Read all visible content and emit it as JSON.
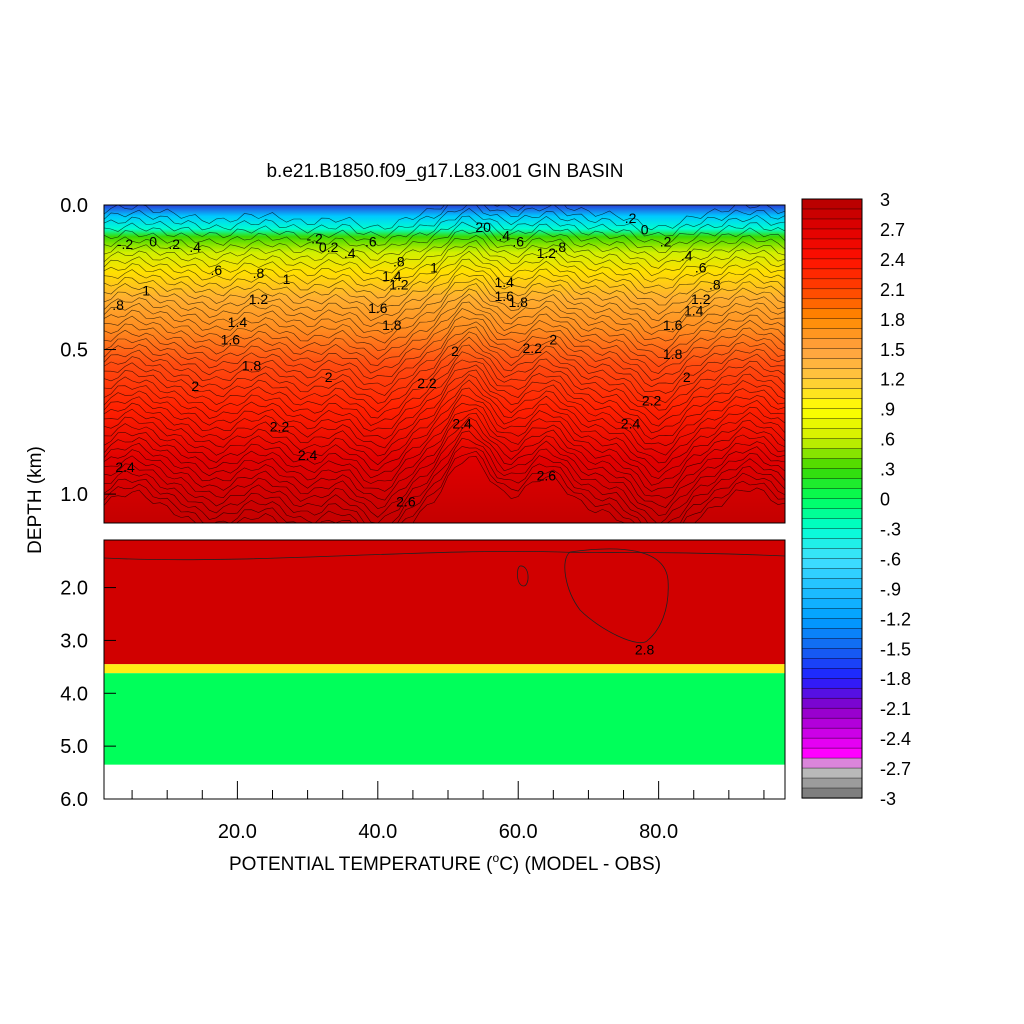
{
  "chart_data": {
    "type": "heatmap",
    "title": "b.e21.B1850.f09_g17.L83.001 GIN BASIN",
    "xlabel_parts": [
      "POTENTIAL TEMPERATURE (",
      "o",
      "C) (MODEL - OBS)"
    ],
    "ylabel": "DEPTH (km)",
    "x_range": [
      1,
      98
    ],
    "x_ticks": [
      {
        "value": 20,
        "label": "20.0"
      },
      {
        "value": 40,
        "label": "40.0"
      },
      {
        "value": 60,
        "label": "60.0"
      },
      {
        "value": 80,
        "label": "80.0"
      }
    ],
    "upper_panel": {
      "y_range": [
        0,
        1.1
      ],
      "y_ticks": [
        {
          "value": 0,
          "label": "0.0"
        },
        {
          "value": 0.5,
          "label": "0.5"
        },
        {
          "value": 1.0,
          "label": "1.0"
        }
      ]
    },
    "lower_panel": {
      "y_range": [
        1.1,
        6.0
      ],
      "y_ticks": [
        {
          "value": 2,
          "label": "2.0"
        },
        {
          "value": 3,
          "label": "3.0"
        },
        {
          "value": 4,
          "label": "4.0"
        },
        {
          "value": 5,
          "label": "5.0"
        },
        {
          "value": 6,
          "label": "6.0"
        }
      ],
      "bands": [
        {
          "from": 1.1,
          "to": 3.45,
          "value": 2.8
        },
        {
          "from": 3.45,
          "to": 3.62,
          "value": 1.0
        },
        {
          "from": 3.62,
          "to": 5.35,
          "value": 0.0
        }
      ]
    },
    "colorbar": {
      "min": -3,
      "max": 3,
      "labels": [
        "3",
        "2.7",
        "2.4",
        "2.1",
        "1.8",
        "1.5",
        "1.2",
        ".9",
        ".6",
        ".3",
        "0",
        "-.3",
        "-.6",
        "-.9",
        "-1.2",
        "-1.5",
        "-1.8",
        "-2.1",
        "-2.4",
        "-2.7",
        "-3"
      ]
    },
    "contour_labels": [
      {
        "x": 4,
        "y": 0.14,
        "text": "-.2"
      },
      {
        "x": 8,
        "y": 0.13,
        "text": "0"
      },
      {
        "x": 11,
        "y": 0.14,
        "text": ".2"
      },
      {
        "x": 14,
        "y": 0.15,
        "text": ".4"
      },
      {
        "x": 17,
        "y": 0.23,
        "text": ".6"
      },
      {
        "x": 23,
        "y": 0.24,
        "text": ".8"
      },
      {
        "x": 27,
        "y": 0.26,
        "text": "1"
      },
      {
        "x": 31,
        "y": 0.12,
        "text": "-.2"
      },
      {
        "x": 33,
        "y": 0.15,
        "text": "0.2"
      },
      {
        "x": 36,
        "y": 0.17,
        "text": ".4"
      },
      {
        "x": 39,
        "y": 0.13,
        "text": ".6"
      },
      {
        "x": 43,
        "y": 0.2,
        "text": ".8"
      },
      {
        "x": 48,
        "y": 0.22,
        "text": "1"
      },
      {
        "x": 23,
        "y": 0.33,
        "text": "1.2"
      },
      {
        "x": 20,
        "y": 0.41,
        "text": "1.4"
      },
      {
        "x": 19,
        "y": 0.47,
        "text": "1.6"
      },
      {
        "x": 22,
        "y": 0.56,
        "text": "1.8"
      },
      {
        "x": 14,
        "y": 0.63,
        "text": "2"
      },
      {
        "x": 3,
        "y": 0.35,
        "text": ".8"
      },
      {
        "x": 7,
        "y": 0.3,
        "text": "1"
      },
      {
        "x": 43,
        "y": 0.28,
        "text": "1.2"
      },
      {
        "x": 42,
        "y": 0.25,
        "text": "1.4"
      },
      {
        "x": 40,
        "y": 0.36,
        "text": "1.6"
      },
      {
        "x": 42,
        "y": 0.42,
        "text": "1.8"
      },
      {
        "x": 51,
        "y": 0.51,
        "text": "2"
      },
      {
        "x": 33,
        "y": 0.6,
        "text": "2"
      },
      {
        "x": 47,
        "y": 0.62,
        "text": "2.2"
      },
      {
        "x": 26,
        "y": 0.77,
        "text": "2.2"
      },
      {
        "x": 30,
        "y": 0.87,
        "text": "2.4"
      },
      {
        "x": 52,
        "y": 0.76,
        "text": "2.4"
      },
      {
        "x": 4,
        "y": 0.91,
        "text": "2.4"
      },
      {
        "x": 44,
        "y": 1.03,
        "text": "2.6"
      },
      {
        "x": 64,
        "y": 0.94,
        "text": "2.6"
      },
      {
        "x": 55,
        "y": 0.08,
        "text": "20"
      },
      {
        "x": 58,
        "y": 0.11,
        "text": ".4"
      },
      {
        "x": 60,
        "y": 0.13,
        "text": ".6"
      },
      {
        "x": 64,
        "y": 0.17,
        "text": "1.2"
      },
      {
        "x": 66,
        "y": 0.15,
        "text": ".8"
      },
      {
        "x": 58,
        "y": 0.27,
        "text": "1.4"
      },
      {
        "x": 58,
        "y": 0.32,
        "text": "1.6"
      },
      {
        "x": 60,
        "y": 0.34,
        "text": "1.8"
      },
      {
        "x": 62,
        "y": 0.5,
        "text": "2.2"
      },
      {
        "x": 65,
        "y": 0.47,
        "text": "2"
      },
      {
        "x": 76,
        "y": 0.05,
        "text": ".2"
      },
      {
        "x": 78,
        "y": 0.09,
        "text": "0"
      },
      {
        "x": 81,
        "y": 0.13,
        "text": ".2"
      },
      {
        "x": 84,
        "y": 0.18,
        "text": ".4"
      },
      {
        "x": 86,
        "y": 0.22,
        "text": ".6"
      },
      {
        "x": 88,
        "y": 0.28,
        "text": ".8"
      },
      {
        "x": 86,
        "y": 0.33,
        "text": "1.2"
      },
      {
        "x": 85,
        "y": 0.37,
        "text": "1.4"
      },
      {
        "x": 82,
        "y": 0.42,
        "text": "1.6"
      },
      {
        "x": 82,
        "y": 0.52,
        "text": "1.8"
      },
      {
        "x": 84,
        "y": 0.6,
        "text": "2"
      },
      {
        "x": 79,
        "y": 0.68,
        "text": "2.2"
      },
      {
        "x": 76,
        "y": 0.76,
        "text": "2.4"
      },
      {
        "x": 78,
        "y": 3.2,
        "text": "2.8"
      }
    ]
  },
  "colors": {
    "frame": "#000000",
    "deep_band": "#c80000",
    "bottom_band": "#00ff5a"
  }
}
